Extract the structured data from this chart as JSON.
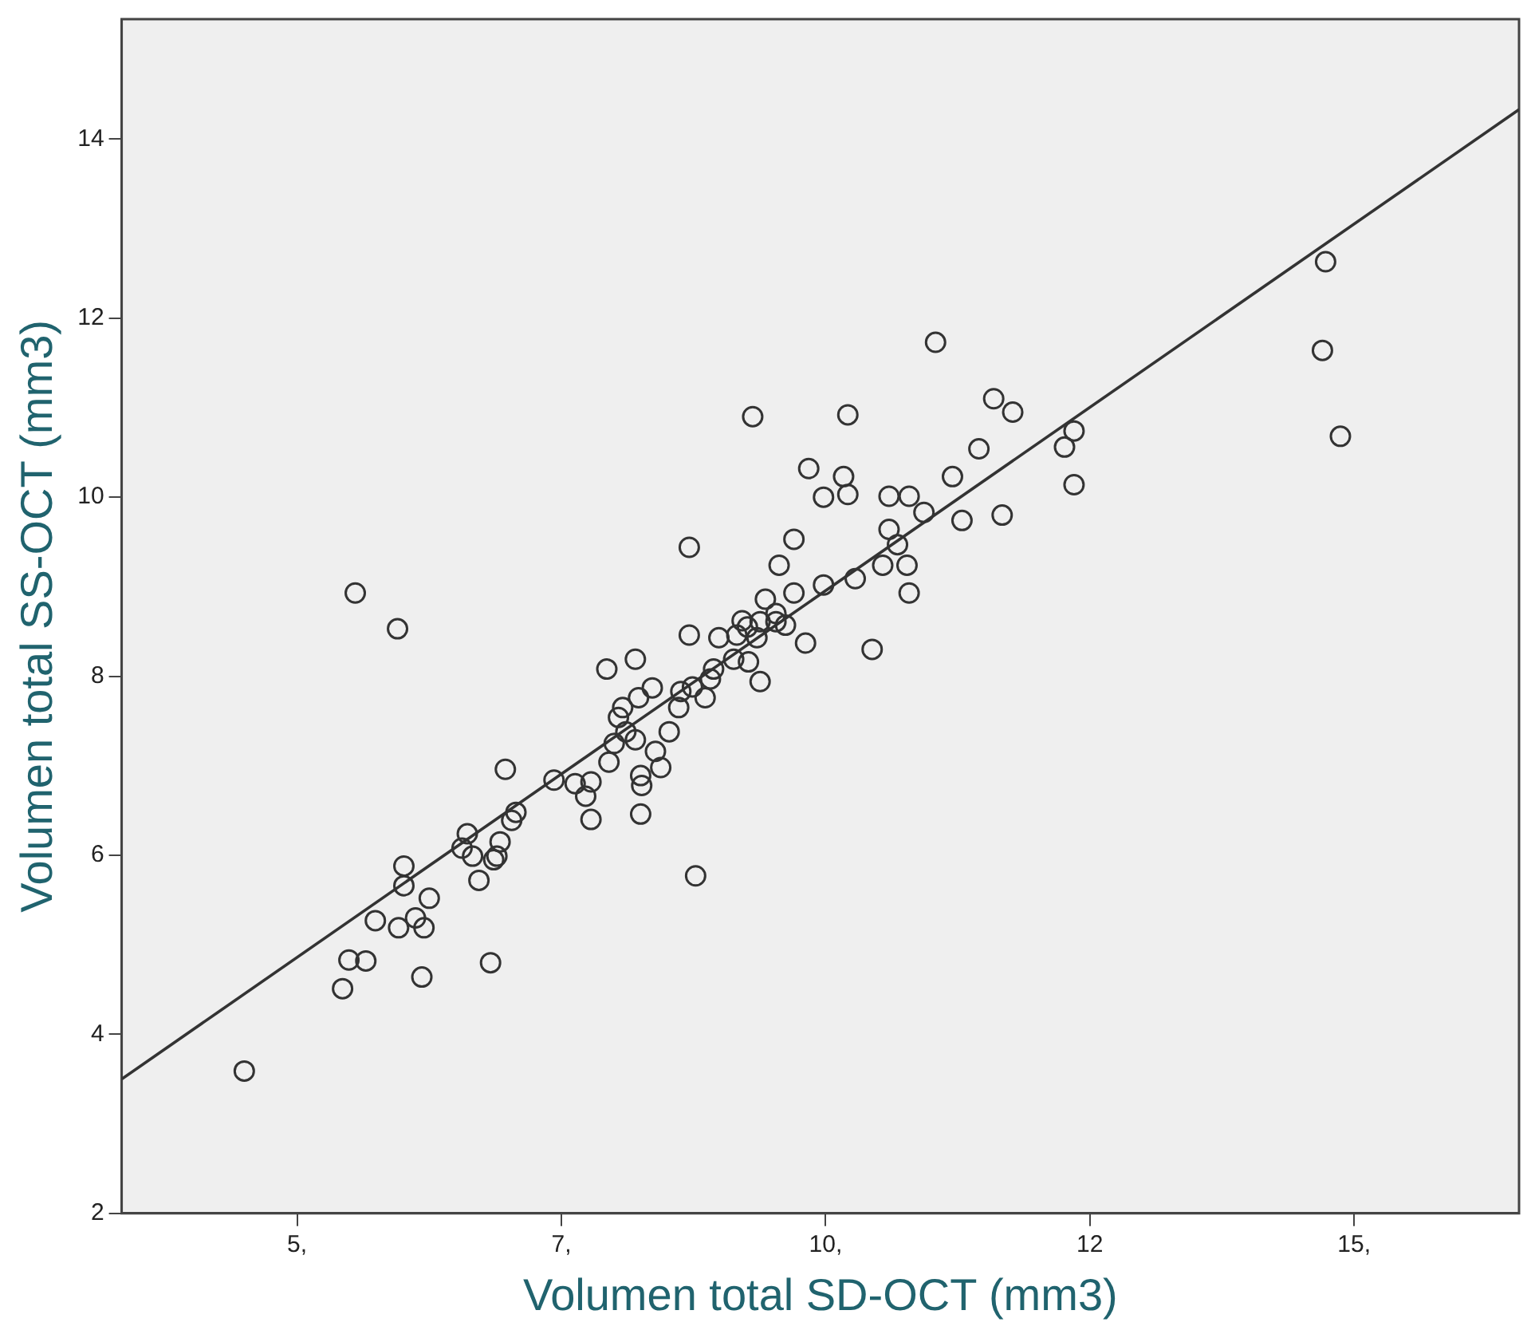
{
  "chart_data": {
    "type": "scatter",
    "xlabel": "Volumen total SD-OCT (mm3)",
    "ylabel": "Volumen total SS-OCT (mm3)",
    "xlim": [
      3.34,
      16.56
    ],
    "ylim": [
      2,
      15.34
    ],
    "xticks": [
      {
        "value": 5,
        "label": "5,"
      },
      {
        "value": 7.5,
        "label": "7,"
      },
      {
        "value": 10,
        "label": "10,"
      },
      {
        "value": 12.5,
        "label": "12"
      },
      {
        "value": 15,
        "label": "15,"
      }
    ],
    "yticks": [
      2,
      4,
      6,
      8,
      10,
      12,
      14
    ],
    "grid": false,
    "legend": false,
    "series": [
      {
        "marker": "circle",
        "color": "#333333",
        "x": [
          4.5,
          5.43,
          5.49,
          5.65,
          5.55,
          5.95,
          5.74,
          6.01,
          6.01,
          6.2,
          6.12,
          5.96,
          6.25,
          6.18,
          6.83,
          6.56,
          6.61,
          6.72,
          6.66,
          6.86,
          6.92,
          6.89,
          6.97,
          7.07,
          7.03,
          7.43,
          7.63,
          7.78,
          7.73,
          7.78,
          7.93,
          8.2,
          7.95,
          8.0,
          8.04,
          8.11,
          8.2,
          8.08,
          8.23,
          8.25,
          8.25,
          8.26,
          8.36,
          8.39,
          8.44,
          8.52,
          8.61,
          8.63,
          8.71,
          8.71,
          8.74,
          8.77,
          8.86,
          8.91,
          8.99,
          8.94,
          9.13,
          9.16,
          9.21,
          9.26,
          9.27,
          9.35,
          9.38,
          9.38,
          9.43,
          9.53,
          9.56,
          9.53,
          9.62,
          9.31,
          9.7,
          9.7,
          9.84,
          9.81,
          9.98,
          9.98,
          10.17,
          10.21,
          10.21,
          10.28,
          10.44,
          10.54,
          10.6,
          10.6,
          10.68,
          10.77,
          10.79,
          10.79,
          10.93,
          11.04,
          11.2,
          11.29,
          11.45,
          11.59,
          11.67,
          11.77,
          12.26,
          12.35,
          12.35,
          14.73,
          14.7,
          14.87
        ],
        "values": [
          3.59,
          4.51,
          4.83,
          4.82,
          8.93,
          8.53,
          5.27,
          5.88,
          5.66,
          5.19,
          5.3,
          5.19,
          5.52,
          4.64,
          4.8,
          6.08,
          6.24,
          5.72,
          5.99,
          5.95,
          6.15,
          5.99,
          6.96,
          6.48,
          6.39,
          6.84,
          6.8,
          6.82,
          6.66,
          6.4,
          8.08,
          8.19,
          7.04,
          7.25,
          7.54,
          7.38,
          7.29,
          7.65,
          7.76,
          6.89,
          6.46,
          6.78,
          7.87,
          7.16,
          6.98,
          7.38,
          7.65,
          7.83,
          8.46,
          9.44,
          7.88,
          5.77,
          7.76,
          7.97,
          8.43,
          8.08,
          8.19,
          8.46,
          8.62,
          8.55,
          8.16,
          8.43,
          8.61,
          7.94,
          8.86,
          8.7,
          9.24,
          8.61,
          8.57,
          10.9,
          9.53,
          8.93,
          10.32,
          8.37,
          10.0,
          9.02,
          10.23,
          10.92,
          10.03,
          9.09,
          8.3,
          9.24,
          10.01,
          9.64,
          9.47,
          9.24,
          8.93,
          10.01,
          9.83,
          11.73,
          10.23,
          9.74,
          10.54,
          11.1,
          9.8,
          10.95,
          10.56,
          10.74,
          10.14,
          12.63,
          11.64,
          10.68
        ]
      },
      {
        "type": "line",
        "marker": "none",
        "color": "#333333",
        "x": [
          3.34,
          16.56
        ],
        "values": [
          3.5,
          14.33
        ]
      }
    ]
  }
}
